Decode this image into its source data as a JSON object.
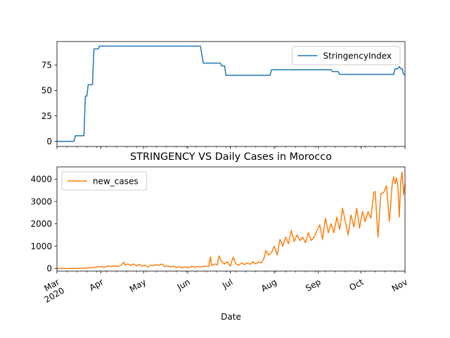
{
  "chart_data": [
    {
      "type": "line",
      "title": "",
      "xlabel": "",
      "ylabel": "",
      "ylim": [
        -5,
        98
      ],
      "yticks": [
        0,
        25,
        50,
        75
      ],
      "legend_position": "top-right",
      "grid": false,
      "series": [
        {
          "name": "StringencyIndex",
          "color": "#1f77b4",
          "points": [
            [
              "2020-03-01",
              0
            ],
            [
              "2020-03-13",
              0
            ],
            [
              "2020-03-14",
              5.56
            ],
            [
              "2020-03-20",
              5.56
            ],
            [
              "2020-03-21",
              44.44
            ],
            [
              "2020-03-22",
              44.44
            ],
            [
              "2020-03-23",
              55.56
            ],
            [
              "2020-03-26",
              55.56
            ],
            [
              "2020-03-27",
              90.74
            ],
            [
              "2020-03-30",
              90.74
            ],
            [
              "2020-03-31",
              93.52
            ],
            [
              "2020-06-10",
              93.52
            ],
            [
              "2020-06-12",
              76.85
            ],
            [
              "2020-06-24",
              76.85
            ],
            [
              "2020-06-25",
              74.07
            ],
            [
              "2020-06-27",
              74.07
            ],
            [
              "2020-06-28",
              64.81
            ],
            [
              "2020-07-29",
              64.81
            ],
            [
              "2020-07-30",
              70.37
            ],
            [
              "2020-09-10",
              70.37
            ],
            [
              "2020-09-11",
              68.52
            ],
            [
              "2020-09-15",
              68.52
            ],
            [
              "2020-09-16",
              65.74
            ],
            [
              "2020-10-24",
              65.74
            ],
            [
              "2020-10-25",
              71.3
            ],
            [
              "2020-10-27",
              71.3
            ],
            [
              "2020-10-28",
              73.5
            ],
            [
              "2020-10-29",
              71.3
            ],
            [
              "2020-10-30",
              71.3
            ],
            [
              "2020-10-31",
              65.74
            ],
            [
              "2020-11-01",
              65.74
            ]
          ]
        }
      ]
    },
    {
      "type": "line",
      "title": "STRINGENCY VS Daily Cases in Morocco",
      "xlabel": "Date",
      "ylabel": "",
      "ylim": [
        -120,
        4550
      ],
      "yticks": [
        0,
        1000,
        2000,
        3000,
        4000
      ],
      "legend_position": "top-left",
      "grid": false,
      "x_ticks": [
        {
          "date": "2020-03-01",
          "label": "Mar",
          "label2": "2020"
        },
        {
          "date": "2020-04-01",
          "label": "Apr"
        },
        {
          "date": "2020-05-01",
          "label": "May"
        },
        {
          "date": "2020-06-01",
          "label": "Jun"
        },
        {
          "date": "2020-07-01",
          "label": "Jul"
        },
        {
          "date": "2020-08-01",
          "label": "Aug"
        },
        {
          "date": "2020-09-01",
          "label": "Sep"
        },
        {
          "date": "2020-10-01",
          "label": "Oct"
        },
        {
          "date": "2020-11-01",
          "label": "Nov"
        }
      ],
      "series": [
        {
          "name": "new_cases",
          "color": "#ff7f0e",
          "points": [
            [
              "2020-03-01",
              0
            ],
            [
              "2020-03-15",
              0
            ],
            [
              "2020-03-22",
              20
            ],
            [
              "2020-03-26",
              40
            ],
            [
              "2020-03-29",
              70
            ],
            [
              "2020-04-01",
              80
            ],
            [
              "2020-04-03",
              50
            ],
            [
              "2020-04-06",
              110
            ],
            [
              "2020-04-08",
              90
            ],
            [
              "2020-04-10",
              110
            ],
            [
              "2020-04-13",
              90
            ],
            [
              "2020-04-15",
              130
            ],
            [
              "2020-04-17",
              280
            ],
            [
              "2020-04-18",
              150
            ],
            [
              "2020-04-20",
              200
            ],
            [
              "2020-04-22",
              130
            ],
            [
              "2020-04-24",
              200
            ],
            [
              "2020-04-26",
              120
            ],
            [
              "2020-04-28",
              180
            ],
            [
              "2020-04-30",
              100
            ],
            [
              "2020-05-02",
              150
            ],
            [
              "2020-05-04",
              60
            ],
            [
              "2020-05-06",
              150
            ],
            [
              "2020-05-08",
              130
            ],
            [
              "2020-05-10",
              170
            ],
            [
              "2020-05-12",
              140
            ],
            [
              "2020-05-14",
              200
            ],
            [
              "2020-05-16",
              80
            ],
            [
              "2020-05-18",
              120
            ],
            [
              "2020-05-20",
              60
            ],
            [
              "2020-05-22",
              100
            ],
            [
              "2020-05-24",
              40
            ],
            [
              "2020-05-26",
              80
            ],
            [
              "2020-05-28",
              30
            ],
            [
              "2020-05-30",
              60
            ],
            [
              "2020-06-02",
              40
            ],
            [
              "2020-06-04",
              100
            ],
            [
              "2020-06-06",
              50
            ],
            [
              "2020-06-08",
              80
            ],
            [
              "2020-06-10",
              60
            ],
            [
              "2020-06-12",
              90
            ],
            [
              "2020-06-14",
              100
            ],
            [
              "2020-06-16",
              80
            ],
            [
              "2020-06-17",
              520
            ],
            [
              "2020-06-18",
              130
            ],
            [
              "2020-06-20",
              200
            ],
            [
              "2020-06-22",
              160
            ],
            [
              "2020-06-23",
              560
            ],
            [
              "2020-06-25",
              300
            ],
            [
              "2020-06-27",
              200
            ],
            [
              "2020-06-29",
              300
            ],
            [
              "2020-07-01",
              100
            ],
            [
              "2020-07-03",
              500
            ],
            [
              "2020-07-05",
              200
            ],
            [
              "2020-07-07",
              150
            ],
            [
              "2020-07-09",
              250
            ],
            [
              "2020-07-11",
              170
            ],
            [
              "2020-07-13",
              250
            ],
            [
              "2020-07-15",
              180
            ],
            [
              "2020-07-17",
              300
            ],
            [
              "2020-07-19",
              200
            ],
            [
              "2020-07-21",
              300
            ],
            [
              "2020-07-23",
              250
            ],
            [
              "2020-07-25",
              500
            ],
            [
              "2020-07-26",
              800
            ],
            [
              "2020-07-28",
              600
            ],
            [
              "2020-07-30",
              700
            ],
            [
              "2020-08-01",
              1000
            ],
            [
              "2020-08-03",
              600
            ],
            [
              "2020-08-05",
              1300
            ],
            [
              "2020-08-07",
              1000
            ],
            [
              "2020-08-09",
              1400
            ],
            [
              "2020-08-11",
              1100
            ],
            [
              "2020-08-13",
              1700
            ],
            [
              "2020-08-15",
              1200
            ],
            [
              "2020-08-17",
              1500
            ],
            [
              "2020-08-19",
              1250
            ],
            [
              "2020-08-21",
              1400
            ],
            [
              "2020-08-23",
              1150
            ],
            [
              "2020-08-25",
              1600
            ],
            [
              "2020-08-27",
              1250
            ],
            [
              "2020-08-29",
              1400
            ],
            [
              "2020-08-31",
              1700
            ],
            [
              "2020-09-02",
              1950
            ],
            [
              "2020-09-04",
              1300
            ],
            [
              "2020-09-06",
              2250
            ],
            [
              "2020-09-08",
              1600
            ],
            [
              "2020-09-10",
              2000
            ],
            [
              "2020-09-12",
              1600
            ],
            [
              "2020-09-14",
              2300
            ],
            [
              "2020-09-16",
              1750
            ],
            [
              "2020-09-18",
              2700
            ],
            [
              "2020-09-20",
              2100
            ],
            [
              "2020-09-22",
              1500
            ],
            [
              "2020-09-24",
              2400
            ],
            [
              "2020-09-26",
              1850
            ],
            [
              "2020-09-28",
              2700
            ],
            [
              "2020-09-30",
              1800
            ],
            [
              "2020-10-02",
              2550
            ],
            [
              "2020-10-04",
              2100
            ],
            [
              "2020-10-06",
              2550
            ],
            [
              "2020-10-08",
              2250
            ],
            [
              "2020-10-10",
              3400
            ],
            [
              "2020-10-11",
              3450
            ],
            [
              "2020-10-13",
              1400
            ],
            [
              "2020-10-15",
              3350
            ],
            [
              "2020-10-17",
              3400
            ],
            [
              "2020-10-19",
              3700
            ],
            [
              "2020-10-21",
              2100
            ],
            [
              "2020-10-23",
              3800
            ],
            [
              "2020-10-24",
              4100
            ],
            [
              "2020-10-25",
              3800
            ],
            [
              "2020-10-26",
              4050
            ],
            [
              "2020-10-27",
              3700
            ],
            [
              "2020-10-28",
              2300
            ],
            [
              "2020-10-29",
              3900
            ],
            [
              "2020-10-30",
              4320
            ],
            [
              "2020-10-31",
              3300
            ],
            [
              "2020-11-01",
              3800
            ]
          ]
        }
      ]
    }
  ]
}
